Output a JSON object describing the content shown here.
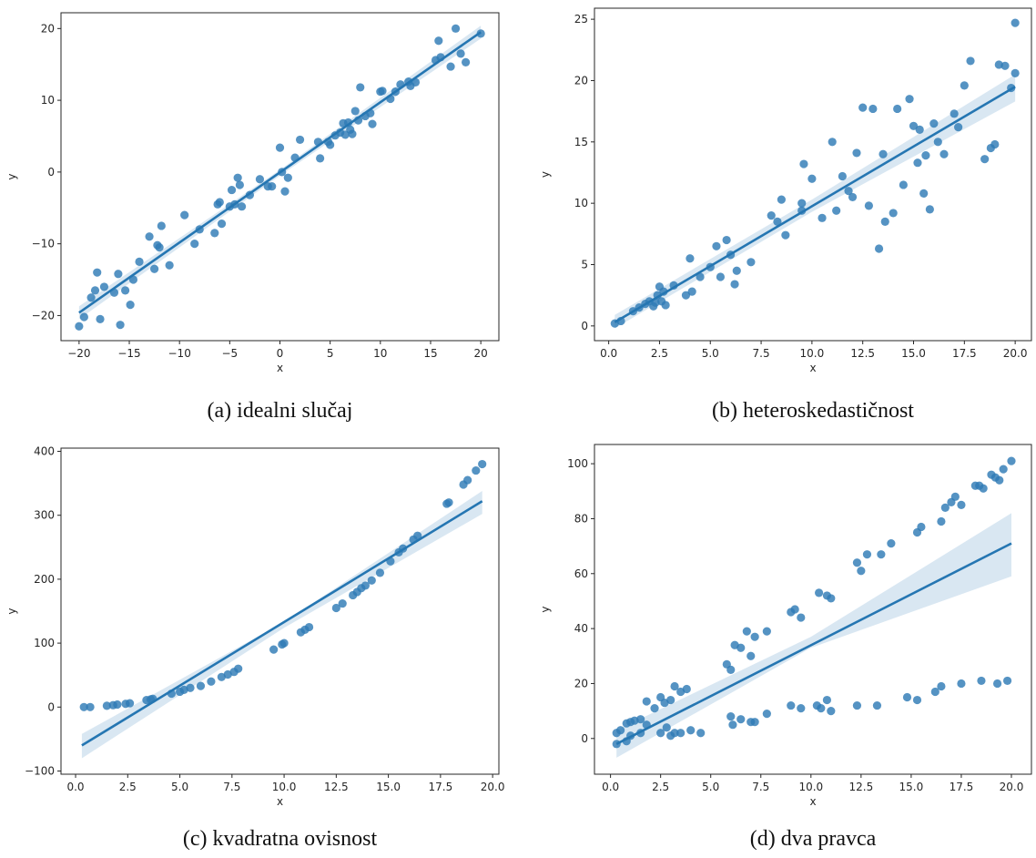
{
  "chart_data": [
    {
      "id": "a",
      "type": "scatter",
      "caption": "(a) idealni slučaj",
      "xlabel": "x",
      "ylabel": "y",
      "xlim": [
        -21.8,
        21.8
      ],
      "ylim": [
        -23.5,
        22.2
      ],
      "xticks": [
        -20,
        -15,
        -10,
        -5,
        0,
        5,
        10,
        15,
        20
      ],
      "xtick_labels": [
        "−20",
        "−15",
        "−10",
        "−5",
        "0",
        "5",
        "10",
        "15",
        "20"
      ],
      "yticks": [
        -20,
        -10,
        0,
        10,
        20
      ],
      "ytick_labels": [
        "−20",
        "−10",
        "0",
        "10",
        "20"
      ],
      "regression": {
        "x": [
          -20,
          20
        ],
        "y": [
          -19.6,
          19.5
        ],
        "ci": [
          [
            -20,
            -20.5,
            -18.7
          ],
          [
            0,
            -0.5,
            0.3
          ],
          [
            20,
            18.6,
            20.4
          ]
        ]
      },
      "points": {
        "x": [
          -20,
          -19.5,
          -18.8,
          -18.4,
          -18.2,
          -17.9,
          -17.5,
          -16.5,
          -16.1,
          -15.9,
          -15.4,
          -14.9,
          -14.6,
          -14,
          -13,
          -12.5,
          -12.2,
          -12,
          -11.8,
          -11,
          -9.5,
          -8.5,
          -8,
          -6.5,
          -6.2,
          -6,
          -5.8,
          -5,
          -4.8,
          -4.5,
          -4.2,
          -4,
          -3.8,
          -3,
          -2,
          -1.2,
          -0.8,
          0,
          0.2,
          0.5,
          0.8,
          1.5,
          2,
          3.8,
          4,
          4.8,
          5,
          5.5,
          6,
          6.3,
          6.5,
          6.8,
          7,
          7.2,
          7.5,
          7.8,
          8,
          8.5,
          9,
          9.2,
          10,
          10.2,
          11,
          11.5,
          12,
          12.8,
          13,
          13.5,
          15.5,
          15.8,
          16,
          17,
          17.5,
          18,
          18.5,
          20
        ],
        "y": [
          -21.5,
          -20.2,
          -17.5,
          -16.5,
          -14,
          -20.5,
          -16,
          -16.8,
          -14.2,
          -21.3,
          -16.5,
          -18.5,
          -15,
          -12.5,
          -9,
          -13.5,
          -10.2,
          -10.5,
          -7.5,
          -13,
          -6,
          -10,
          -8,
          -8.5,
          -4.5,
          -4.2,
          -7.2,
          -4.8,
          -2.5,
          -4.5,
          -0.8,
          -1.8,
          -4.8,
          -3.2,
          -1,
          -2,
          -2,
          3.4,
          0,
          -2.7,
          -0.8,
          2,
          4.5,
          4.2,
          1.9,
          4.2,
          3.8,
          5.1,
          5.5,
          6.8,
          5.2,
          6.9,
          5.9,
          5.3,
          8.5,
          7.2,
          11.8,
          7.8,
          8.2,
          6.7,
          11.2,
          11.3,
          10.2,
          11.2,
          12.2,
          12.6,
          12,
          12.5,
          15.6,
          18.3,
          16,
          14.7,
          20,
          16.5,
          15.3,
          19.3
        ]
      }
    },
    {
      "id": "b",
      "type": "scatter",
      "caption": "(b) heteroskedastičnost",
      "xlabel": "x",
      "ylabel": "y",
      "xlim": [
        -0.7,
        20.8
      ],
      "ylim": [
        -1.2,
        25.9
      ],
      "xticks": [
        0,
        2.5,
        5,
        7.5,
        10,
        12.5,
        15,
        17.5,
        20
      ],
      "xtick_labels": [
        "0.0",
        "2.5",
        "5.0",
        "7.5",
        "10.0",
        "12.5",
        "15.0",
        "17.5",
        "20.0"
      ],
      "yticks": [
        0,
        5,
        10,
        15,
        20,
        25
      ],
      "ytick_labels": [
        "0",
        "5",
        "10",
        "15",
        "20",
        "25"
      ],
      "regression": {
        "x": [
          0.3,
          20
        ],
        "y": [
          0.3,
          19.5
        ],
        "ci": [
          [
            0.3,
            -0.2,
            0.9
          ],
          [
            10,
            9.3,
            10.3
          ],
          [
            20,
            18.3,
            20.5
          ]
        ]
      },
      "points": {
        "x": [
          0.3,
          0.6,
          1.2,
          1.5,
          1.8,
          2.0,
          2.2,
          2.3,
          2.4,
          2.5,
          2.6,
          2.7,
          2.8,
          3.2,
          3.8,
          4.0,
          4.1,
          4.5,
          5.0,
          5.3,
          5.5,
          5.8,
          6.0,
          6.2,
          6.3,
          7.0,
          8.0,
          8.3,
          8.5,
          8.7,
          9.5,
          9.5,
          9.6,
          10.0,
          10.5,
          11.0,
          11.2,
          11.5,
          11.8,
          12.0,
          12.2,
          12.5,
          12.8,
          13.0,
          13.3,
          13.5,
          13.6,
          14.0,
          14.2,
          14.5,
          14.8,
          15.0,
          15.2,
          15.3,
          15.5,
          15.6,
          15.8,
          16.0,
          16.2,
          16.5,
          17.0,
          17.2,
          17.5,
          17.8,
          18.5,
          18.8,
          19.0,
          19.2,
          19.5,
          19.8,
          20.0,
          20.0
        ],
        "y": [
          0.2,
          0.4,
          1.2,
          1.5,
          1.8,
          2.0,
          1.6,
          1.9,
          2.5,
          3.2,
          2.0,
          2.8,
          1.7,
          3.3,
          2.5,
          5.5,
          2.8,
          4.0,
          4.8,
          6.5,
          4.0,
          7.0,
          5.8,
          3.4,
          4.5,
          5.2,
          9.0,
          8.5,
          10.3,
          7.4,
          9.4,
          10.0,
          13.2,
          12.0,
          8.8,
          15.0,
          9.4,
          12.2,
          11.0,
          10.5,
          14.1,
          17.8,
          9.8,
          17.7,
          6.3,
          14.0,
          8.5,
          9.2,
          17.7,
          11.5,
          18.5,
          16.3,
          13.3,
          16.0,
          10.8,
          13.9,
          9.5,
          16.5,
          15.0,
          14.0,
          17.3,
          16.2,
          19.6,
          21.6,
          13.6,
          14.5,
          14.8,
          21.3,
          21.2,
          19.4,
          24.7,
          20.6
        ]
      }
    },
    {
      "id": "c",
      "type": "scatter",
      "caption": "(c) kvadratna ovisnost",
      "xlabel": "x",
      "ylabel": "y",
      "xlim": [
        -0.7,
        20.3
      ],
      "ylim": [
        -105,
        405
      ],
      "xticks": [
        0,
        2.5,
        5,
        7.5,
        10,
        12.5,
        15,
        17.5,
        20
      ],
      "xtick_labels": [
        "0.0",
        "2.5",
        "5.0",
        "7.5",
        "10.0",
        "12.5",
        "15.0",
        "17.5",
        "20.0"
      ],
      "yticks": [
        -100,
        0,
        100,
        200,
        300,
        400
      ],
      "ytick_labels": [
        "−100",
        "0",
        "100",
        "200",
        "300",
        "400"
      ],
      "regression": {
        "x": [
          0.3,
          19.5
        ],
        "y": [
          -60,
          322
        ],
        "ci": [
          [
            0.3,
            -80,
            -42
          ],
          [
            10,
            124,
            133
          ],
          [
            19.5,
            302,
            338
          ]
        ]
      },
      "points": {
        "x": [
          0.4,
          0.7,
          1.5,
          1.8,
          2.0,
          2.4,
          2.6,
          3.4,
          3.6,
          3.7,
          4.6,
          5.0,
          5.2,
          5.5,
          6.0,
          6.5,
          7.0,
          7.3,
          7.6,
          7.8,
          9.5,
          9.9,
          10.0,
          10.8,
          11.0,
          11.2,
          12.5,
          12.8,
          13.3,
          13.5,
          13.7,
          13.9,
          14.2,
          14.6,
          15.1,
          15.5,
          15.7,
          16.2,
          16.4,
          17.8,
          17.9,
          18.6,
          18.8,
          19.2,
          19.5
        ],
        "y": [
          0,
          0,
          2,
          3,
          4,
          5,
          6,
          11,
          12,
          13,
          21,
          24,
          27,
          30,
          33,
          40,
          47,
          51,
          55,
          60,
          90,
          98,
          100,
          117,
          121,
          125,
          155,
          162,
          175,
          180,
          186,
          190,
          198,
          210,
          228,
          242,
          248,
          262,
          268,
          318,
          320,
          348,
          355,
          370,
          380
        ]
      }
    },
    {
      "id": "d",
      "type": "scatter",
      "caption": "(d) dva pravca",
      "xlabel": "x",
      "ylabel": "y",
      "xlim": [
        -0.8,
        21.0
      ],
      "ylim": [
        -13,
        107
      ],
      "xticks": [
        0,
        2.5,
        5,
        7.5,
        10,
        12.5,
        15,
        17.5,
        20
      ],
      "xtick_labels": [
        "0.0",
        "2.5",
        "5.0",
        "7.5",
        "10.0",
        "12.5",
        "15.0",
        "17.5",
        "20.0"
      ],
      "yticks": [
        0,
        20,
        40,
        60,
        80,
        100
      ],
      "ytick_labels": [
        "0",
        "20",
        "40",
        "60",
        "80",
        "100"
      ],
      "regression": {
        "x": [
          0.3,
          20
        ],
        "y": [
          -2,
          71
        ],
        "ci": [
          [
            0.3,
            -7,
            3
          ],
          [
            10,
            33,
            37
          ],
          [
            20,
            59,
            82
          ]
        ]
      },
      "points": {
        "x": [
          0.3,
          0.5,
          0.8,
          1.0,
          1.2,
          1.5,
          1.8,
          2.2,
          2.5,
          2.7,
          3.0,
          3.2,
          3.5,
          3.8,
          5.8,
          6.0,
          6.2,
          6.5,
          6.8,
          7.0,
          7.2,
          7.8,
          9.0,
          9.2,
          9.5,
          10.4,
          10.8,
          11.0,
          12.3,
          12.5,
          12.8,
          13.5,
          14.0,
          15.3,
          15.5,
          16.5,
          16.7,
          17.0,
          17.2,
          17.5,
          18.2,
          18.4,
          18.6,
          19.0,
          19.2,
          19.4,
          19.6,
          20.0,
          0.3,
          0.8,
          1.0,
          1.5,
          1.8,
          2.5,
          2.8,
          3.0,
          3.2,
          3.5,
          4.0,
          4.5,
          6.0,
          6.1,
          6.5,
          7.0,
          7.2,
          7.8,
          9.0,
          9.5,
          10.3,
          10.5,
          10.8,
          11.0,
          12.3,
          13.3,
          14.8,
          15.3,
          16.2,
          16.5,
          17.5,
          18.5,
          19.3,
          19.8
        ],
        "y": [
          2,
          3,
          5.5,
          6,
          6.5,
          7,
          13.5,
          11,
          15,
          13,
          14,
          19,
          17,
          18,
          27,
          25,
          34,
          33,
          39,
          30,
          37,
          39,
          46,
          47,
          44,
          53,
          52,
          51,
          64,
          61,
          67,
          67,
          71,
          75,
          77,
          79,
          84,
          86,
          88,
          85,
          92,
          92,
          91,
          96,
          95,
          94,
          98,
          101,
          -2,
          -1,
          1,
          2,
          5,
          2,
          4,
          1,
          2,
          2,
          3,
          2,
          8,
          5,
          7,
          6,
          6,
          9,
          12,
          11,
          12,
          11,
          14,
          10,
          12,
          12,
          15,
          14,
          17,
          19,
          20,
          21,
          20,
          21
        ]
      }
    }
  ]
}
